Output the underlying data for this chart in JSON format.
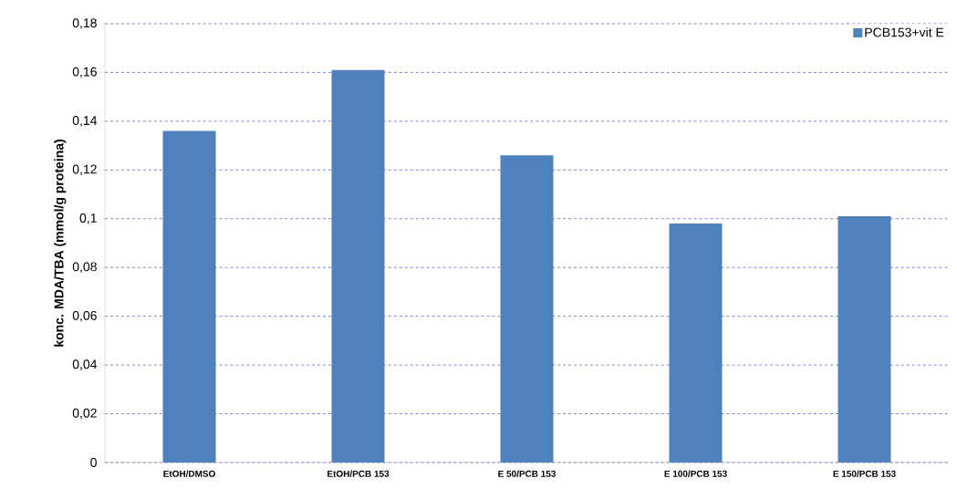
{
  "chart_data": {
    "type": "bar",
    "ylabel": "konc. MDA/TBA (mmol/g proteina)",
    "categories": [
      "EtOH/DMSO",
      "EtOH/PCB 153",
      "E 50/PCB 153",
      "E 100/PCB 153",
      "E 150/PCB 153"
    ],
    "series": [
      {
        "name": "PCB153+vit E",
        "color": "#4f81bd",
        "values": [
          0.136,
          0.161,
          0.126,
          0.098,
          0.101
        ]
      }
    ],
    "ylim": [
      0,
      0.18
    ],
    "yticks": [
      0,
      {
        "value": 0.02,
        "label": "0,02"
      },
      {
        "value": 0.04,
        "label": "0,04"
      },
      {
        "value": 0.06,
        "label": "0,06"
      },
      {
        "value": 0.08,
        "label": "0,08"
      },
      {
        "value": 0.1,
        "label": "0,1"
      },
      {
        "value": 0.12,
        "label": "0,12"
      },
      {
        "value": 0.14,
        "label": "0,14"
      },
      {
        "value": 0.16,
        "label": "0,16"
      },
      {
        "value": 0.18,
        "label": "0,18"
      }
    ],
    "grid": "y",
    "legend": "top right"
  }
}
